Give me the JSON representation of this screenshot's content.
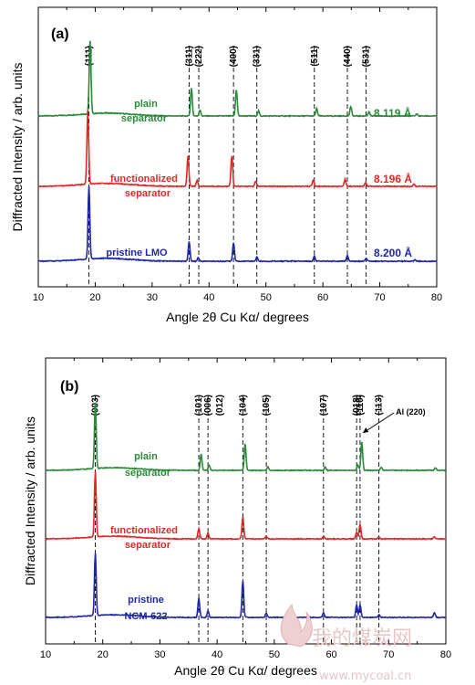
{
  "colors": {
    "green": "#2a8a3a",
    "red": "#e02828",
    "blue": "#1f27a8",
    "ref": "#000000"
  },
  "watermark": {
    "text_cn": "我的煤炭网",
    "text_en": "www.mycoal.cn"
  },
  "chart_data": [
    {
      "type": "line",
      "panel": "(a)",
      "xlabel": "Angle 2θ Cu Kα/ degrees",
      "ylabel": "Diffracted Intensity / arb. units",
      "xlim": [
        10,
        80
      ],
      "xticks": [
        10,
        20,
        30,
        40,
        50,
        60,
        70,
        80
      ],
      "reflections": [
        {
          "label": "(111)",
          "x": 18.9
        },
        {
          "label": "(311)",
          "x": 36.5
        },
        {
          "label": "(222)",
          "x": 38.2
        },
        {
          "label": "(400)",
          "x": 44.3
        },
        {
          "label": "(331)",
          "x": 48.4
        },
        {
          "label": "(511)",
          "x": 58.5
        },
        {
          "label": "(440)",
          "x": 64.3
        },
        {
          "label": "(531)",
          "x": 67.6
        }
      ],
      "series": [
        {
          "key": "plain",
          "label_lines": [
            "plain",
            "separator"
          ],
          "lattice": "8.119 Å",
          "color": "green",
          "peaks": [
            [
              19.1,
              1.0
            ],
            [
              36.9,
              0.38
            ],
            [
              38.4,
              0.08
            ],
            [
              44.8,
              0.36
            ],
            [
              48.7,
              0.07
            ],
            [
              58.9,
              0.1
            ],
            [
              64.9,
              0.13
            ],
            [
              68.1,
              0.06
            ],
            [
              76.5,
              0.03
            ]
          ]
        },
        {
          "key": "functionalized",
          "label_lines": [
            "functionalized",
            "separator"
          ],
          "lattice": "8.196 Å",
          "color": "red",
          "peaks": [
            [
              18.7,
              1.0
            ],
            [
              36.3,
              0.42
            ],
            [
              37.9,
              0.08
            ],
            [
              44.0,
              0.42
            ],
            [
              48.2,
              0.07
            ],
            [
              58.3,
              0.09
            ],
            [
              63.9,
              0.1
            ],
            [
              67.5,
              0.05
            ],
            [
              76.0,
              0.03
            ]
          ]
        },
        {
          "key": "pristine",
          "label_lines": [
            "pristine LMO"
          ],
          "lattice": "8.200 Å",
          "color": "blue",
          "peaks": [
            [
              18.9,
              1.0
            ],
            [
              36.5,
              0.27
            ],
            [
              38.1,
              0.05
            ],
            [
              44.3,
              0.25
            ],
            [
              48.4,
              0.06
            ],
            [
              58.5,
              0.07
            ],
            [
              64.3,
              0.08
            ],
            [
              67.6,
              0.04
            ],
            [
              76.2,
              0.02
            ]
          ]
        }
      ]
    },
    {
      "type": "line",
      "panel": "(b)",
      "xlabel": "Angle 2θ Cu Kα/ degrees",
      "ylabel": "Diffracted Intensity / arb. units",
      "xlim": [
        10,
        80
      ],
      "xticks": [
        10,
        20,
        30,
        40,
        50,
        60,
        70,
        80
      ],
      "reflections": [
        {
          "label": "(003)",
          "x": 18.7
        },
        {
          "label": "(101)",
          "x": 36.8
        },
        {
          "label": "(006)",
          "x": 38.4
        },
        {
          "label": "(012)",
          "x": 38.4,
          "hidden_line": true
        },
        {
          "label": "(104)",
          "x": 44.5
        },
        {
          "label": "(105)",
          "x": 48.6
        },
        {
          "label": "(107)",
          "x": 58.6
        },
        {
          "label": "(018)",
          "x": 64.4
        },
        {
          "label": "(110)",
          "x": 65.0
        },
        {
          "label": "(113)",
          "x": 68.3
        }
      ],
      "annotation": {
        "text": "Al (220)",
        "x": 65.2
      },
      "series": [
        {
          "key": "plain",
          "label_lines": [
            "plain",
            "separator"
          ],
          "color": "green",
          "peaks": [
            [
              18.7,
              1.0
            ],
            [
              37.2,
              0.25
            ],
            [
              38.6,
              0.08
            ],
            [
              44.9,
              0.4
            ],
            [
              48.9,
              0.05
            ],
            [
              58.9,
              0.05
            ],
            [
              64.6,
              0.08
            ],
            [
              65.3,
              0.43
            ],
            [
              68.7,
              0.05
            ],
            [
              78.2,
              0.04
            ]
          ]
        },
        {
          "key": "functionalized",
          "label_lines": [
            "functionalized",
            "separator"
          ],
          "color": "red",
          "peaks": [
            [
              18.7,
              1.0
            ],
            [
              36.8,
              0.16
            ],
            [
              38.4,
              0.09
            ],
            [
              44.5,
              0.34
            ],
            [
              48.6,
              0.04
            ],
            [
              58.6,
              0.04
            ],
            [
              64.4,
              0.1
            ],
            [
              65.0,
              0.22
            ],
            [
              68.3,
              0.03
            ],
            [
              78.0,
              0.03
            ]
          ]
        },
        {
          "key": "pristine",
          "label_lines": [
            "pristine",
            "NCM-622"
          ],
          "color": "blue",
          "peaks": [
            [
              18.7,
              0.95
            ],
            [
              36.8,
              0.29
            ],
            [
              38.4,
              0.1
            ],
            [
              44.5,
              0.56
            ],
            [
              48.6,
              0.07
            ],
            [
              58.6,
              0.07
            ],
            [
              64.4,
              0.19
            ],
            [
              65.0,
              0.19
            ],
            [
              68.3,
              0.04
            ],
            [
              78.0,
              0.07
            ]
          ]
        }
      ]
    }
  ]
}
